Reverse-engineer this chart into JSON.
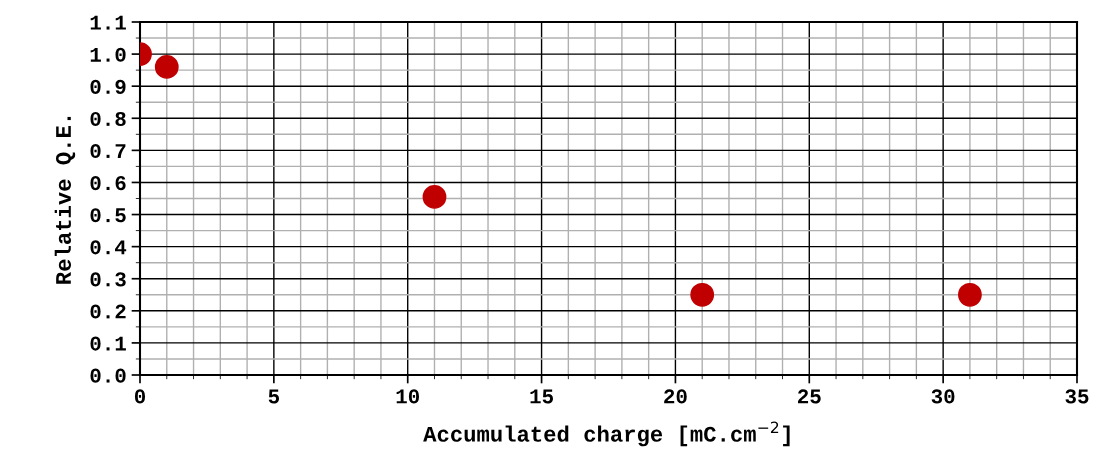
{
  "chart_data": {
    "type": "scatter",
    "xlabel": "Accumulated charge [mC.cm$^{−2}$]",
    "ylabel": "Relative Q.E.",
    "x": [
      0,
      1,
      11,
      21,
      31
    ],
    "series": [
      {
        "color": "#c00000",
        "values": [
          1.0,
          0.96,
          0.555,
          0.25,
          0.25
        ]
      }
    ],
    "xlim": [
      0,
      35
    ],
    "xticks": [
      0,
      5,
      10,
      15,
      20,
      25,
      30,
      35
    ],
    "ylim": [
      0,
      1.1
    ],
    "yticks": [
      {
        "value": 0,
        "label": "0.0"
      },
      {
        "value": 0.1,
        "label": "0.1"
      },
      {
        "value": 0.2,
        "label": "0.2"
      },
      {
        "value": 0.3,
        "label": "0.3"
      },
      {
        "value": 0.4,
        "label": "0.4"
      },
      {
        "value": 0.5,
        "label": "0.5"
      },
      {
        "value": 0.6,
        "label": "0.6"
      },
      {
        "value": 0.7,
        "label": "0.7"
      },
      {
        "value": 0.8,
        "label": "0.8"
      },
      {
        "value": 0.9,
        "label": "0.9"
      },
      {
        "value": 1.0,
        "label": "1.0"
      },
      {
        "value": 1.1,
        "label": "1.1"
      }
    ],
    "grid": true,
    "marker": "circle"
  }
}
